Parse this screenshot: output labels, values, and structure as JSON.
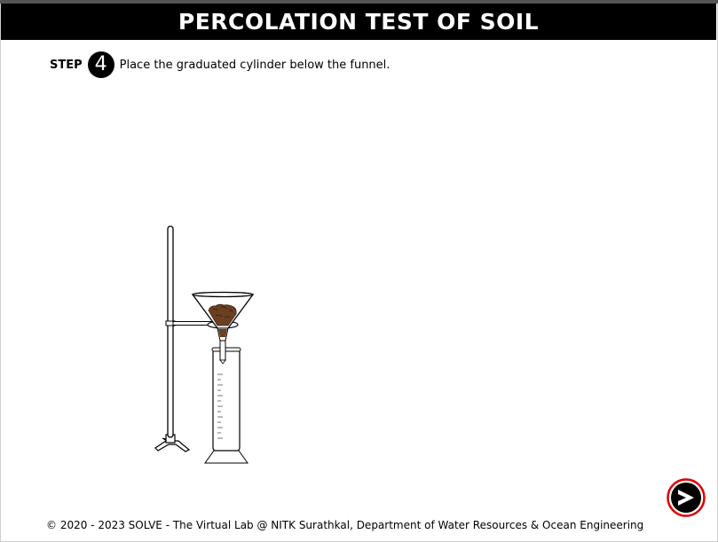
{
  "header": {
    "title": "PERCOLATION TEST OF SOIL"
  },
  "instruction": {
    "step_label": "STEP",
    "step_number": "4",
    "text": "Place the graduated cylinder below the funnel."
  },
  "apparatus": {
    "items": [
      "retort-stand",
      "funnel-with-soil",
      "graduated-cylinder"
    ],
    "soil_color": "#6b3f22"
  },
  "navigation": {
    "next_icon": "chevron-right-icon",
    "ring_color": "#e00000"
  },
  "footer": {
    "text": "© 2020 - 2023 SOLVE - The Virtual Lab @ NITK Surathkal, Department of Water Resources & Ocean Engineering"
  }
}
